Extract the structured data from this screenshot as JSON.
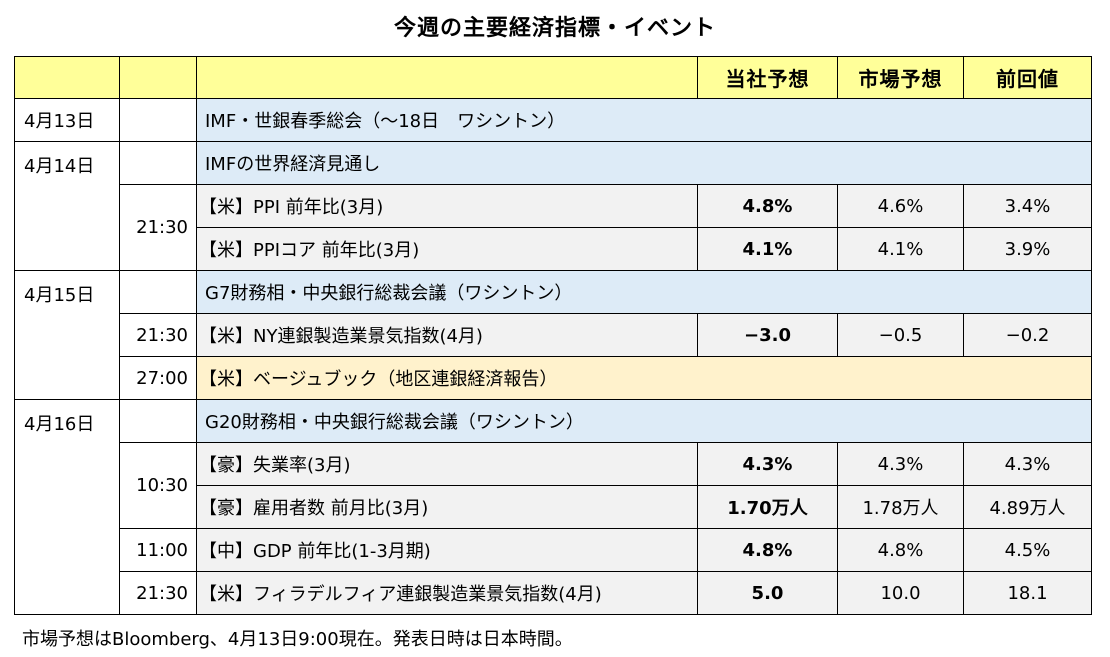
{
  "title": "今週の主要経済指標・イベント",
  "header": {
    "date": "",
    "time": "",
    "event": "",
    "our_forecast": "当社予想",
    "market_forecast": "市場予想",
    "previous": "前回値"
  },
  "days": [
    {
      "date": "4月13日",
      "event": "IMF・世銀春季総会（～18日　ワシントン）",
      "items": []
    },
    {
      "date": "4月14日",
      "event": "IMFの世界経済見通し",
      "items": [
        {
          "time": "21:30",
          "name": "【米】PPI 前年比(3月)",
          "ours": "4.8%",
          "market": "4.6%",
          "previous": "3.4%"
        },
        {
          "time": "",
          "name": "【米】PPIコア 前年比(3月)",
          "ours": "4.1%",
          "market": "4.1%",
          "previous": "3.9%"
        }
      ]
    },
    {
      "date": "4月15日",
      "event": "G7財務相・中央銀行総裁会議（ワシントン）",
      "items": [
        {
          "time": "21:30",
          "name": "【米】NY連銀製造業景気指数(4月)",
          "ours": "−3.0",
          "market": "−0.5",
          "previous": "−0.2"
        },
        {
          "time": "27:00",
          "name": "【米】ベージュブック（地区連銀経済報告）",
          "ours": "",
          "market": "",
          "previous": ""
        }
      ]
    },
    {
      "date": "4月16日",
      "event": "G20財務相・中央銀行総裁会議（ワシントン）",
      "items": [
        {
          "time": "10:30",
          "name": "【豪】失業率(3月)",
          "ours": "4.3%",
          "market": "4.3%",
          "previous": "4.3%"
        },
        {
          "time": "",
          "name": "【豪】雇用者数 前月比(3月)",
          "ours": "1.70万人",
          "market": "1.78万人",
          "previous": "4.89万人"
        },
        {
          "time": "11:00",
          "name": "【中】GDP 前年比(1-3月期)",
          "ours": "4.8%",
          "market": "4.8%",
          "previous": "4.5%"
        },
        {
          "time": "21:30",
          "name": "【米】フィラデルフィア連銀製造業景気指数(4月)",
          "ours": "5.0",
          "market": "10.0",
          "previous": "18.1"
        }
      ]
    }
  ],
  "footnote": "市場予想はBloomberg、4月13日9:00現在。発表日時は日本時間。",
  "colors": {
    "header_bg": "#ffff99",
    "event_bg": "#ddebf7",
    "beige_book_bg": "#fff2cc",
    "indicator_bg": "#f2f2f2"
  }
}
